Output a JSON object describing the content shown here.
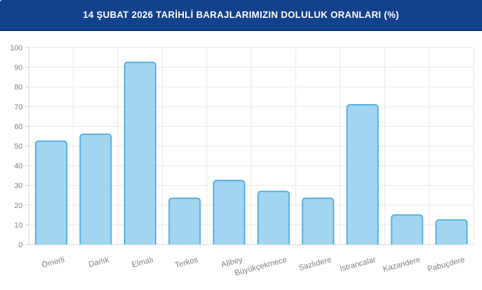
{
  "header": {
    "title": "14 ŞUBAT 2026 TARİHLİ BARAJLARIMIZIN DOLULUK ORANLARI (%)",
    "background": "#14418C",
    "text_color": "#FFFFFF"
  },
  "chart_data": {
    "type": "bar",
    "title": "14 ŞUBAT 2026 TARİHLİ BARAJLARIMIZIN DOLULUK ORANLARI (%)",
    "categories": [
      "Ömerli",
      "Darlık",
      "Elmalı",
      "Terkos",
      "Alibey",
      "Büyükçekmece",
      "Sazlıdere",
      "Istrancalar",
      "Kazandere",
      "Pabuçdere"
    ],
    "values": [
      52.5,
      56,
      92.5,
      23.5,
      32.5,
      27,
      23.5,
      71,
      15,
      12.5
    ],
    "xlabel": "",
    "ylabel": "",
    "ylim": [
      0,
      100
    ],
    "ytick_step": 10,
    "grid": true,
    "legend": "none",
    "x_label_rotation": -15,
    "colors": {
      "bar_fill": "#A1D5F0",
      "bar_stroke": "#55B2E1",
      "grid_color": "#EAEAEA",
      "axis_color": "#D5D5D5",
      "tick_color": "#CCCCCC",
      "label_color": "#808080"
    }
  }
}
